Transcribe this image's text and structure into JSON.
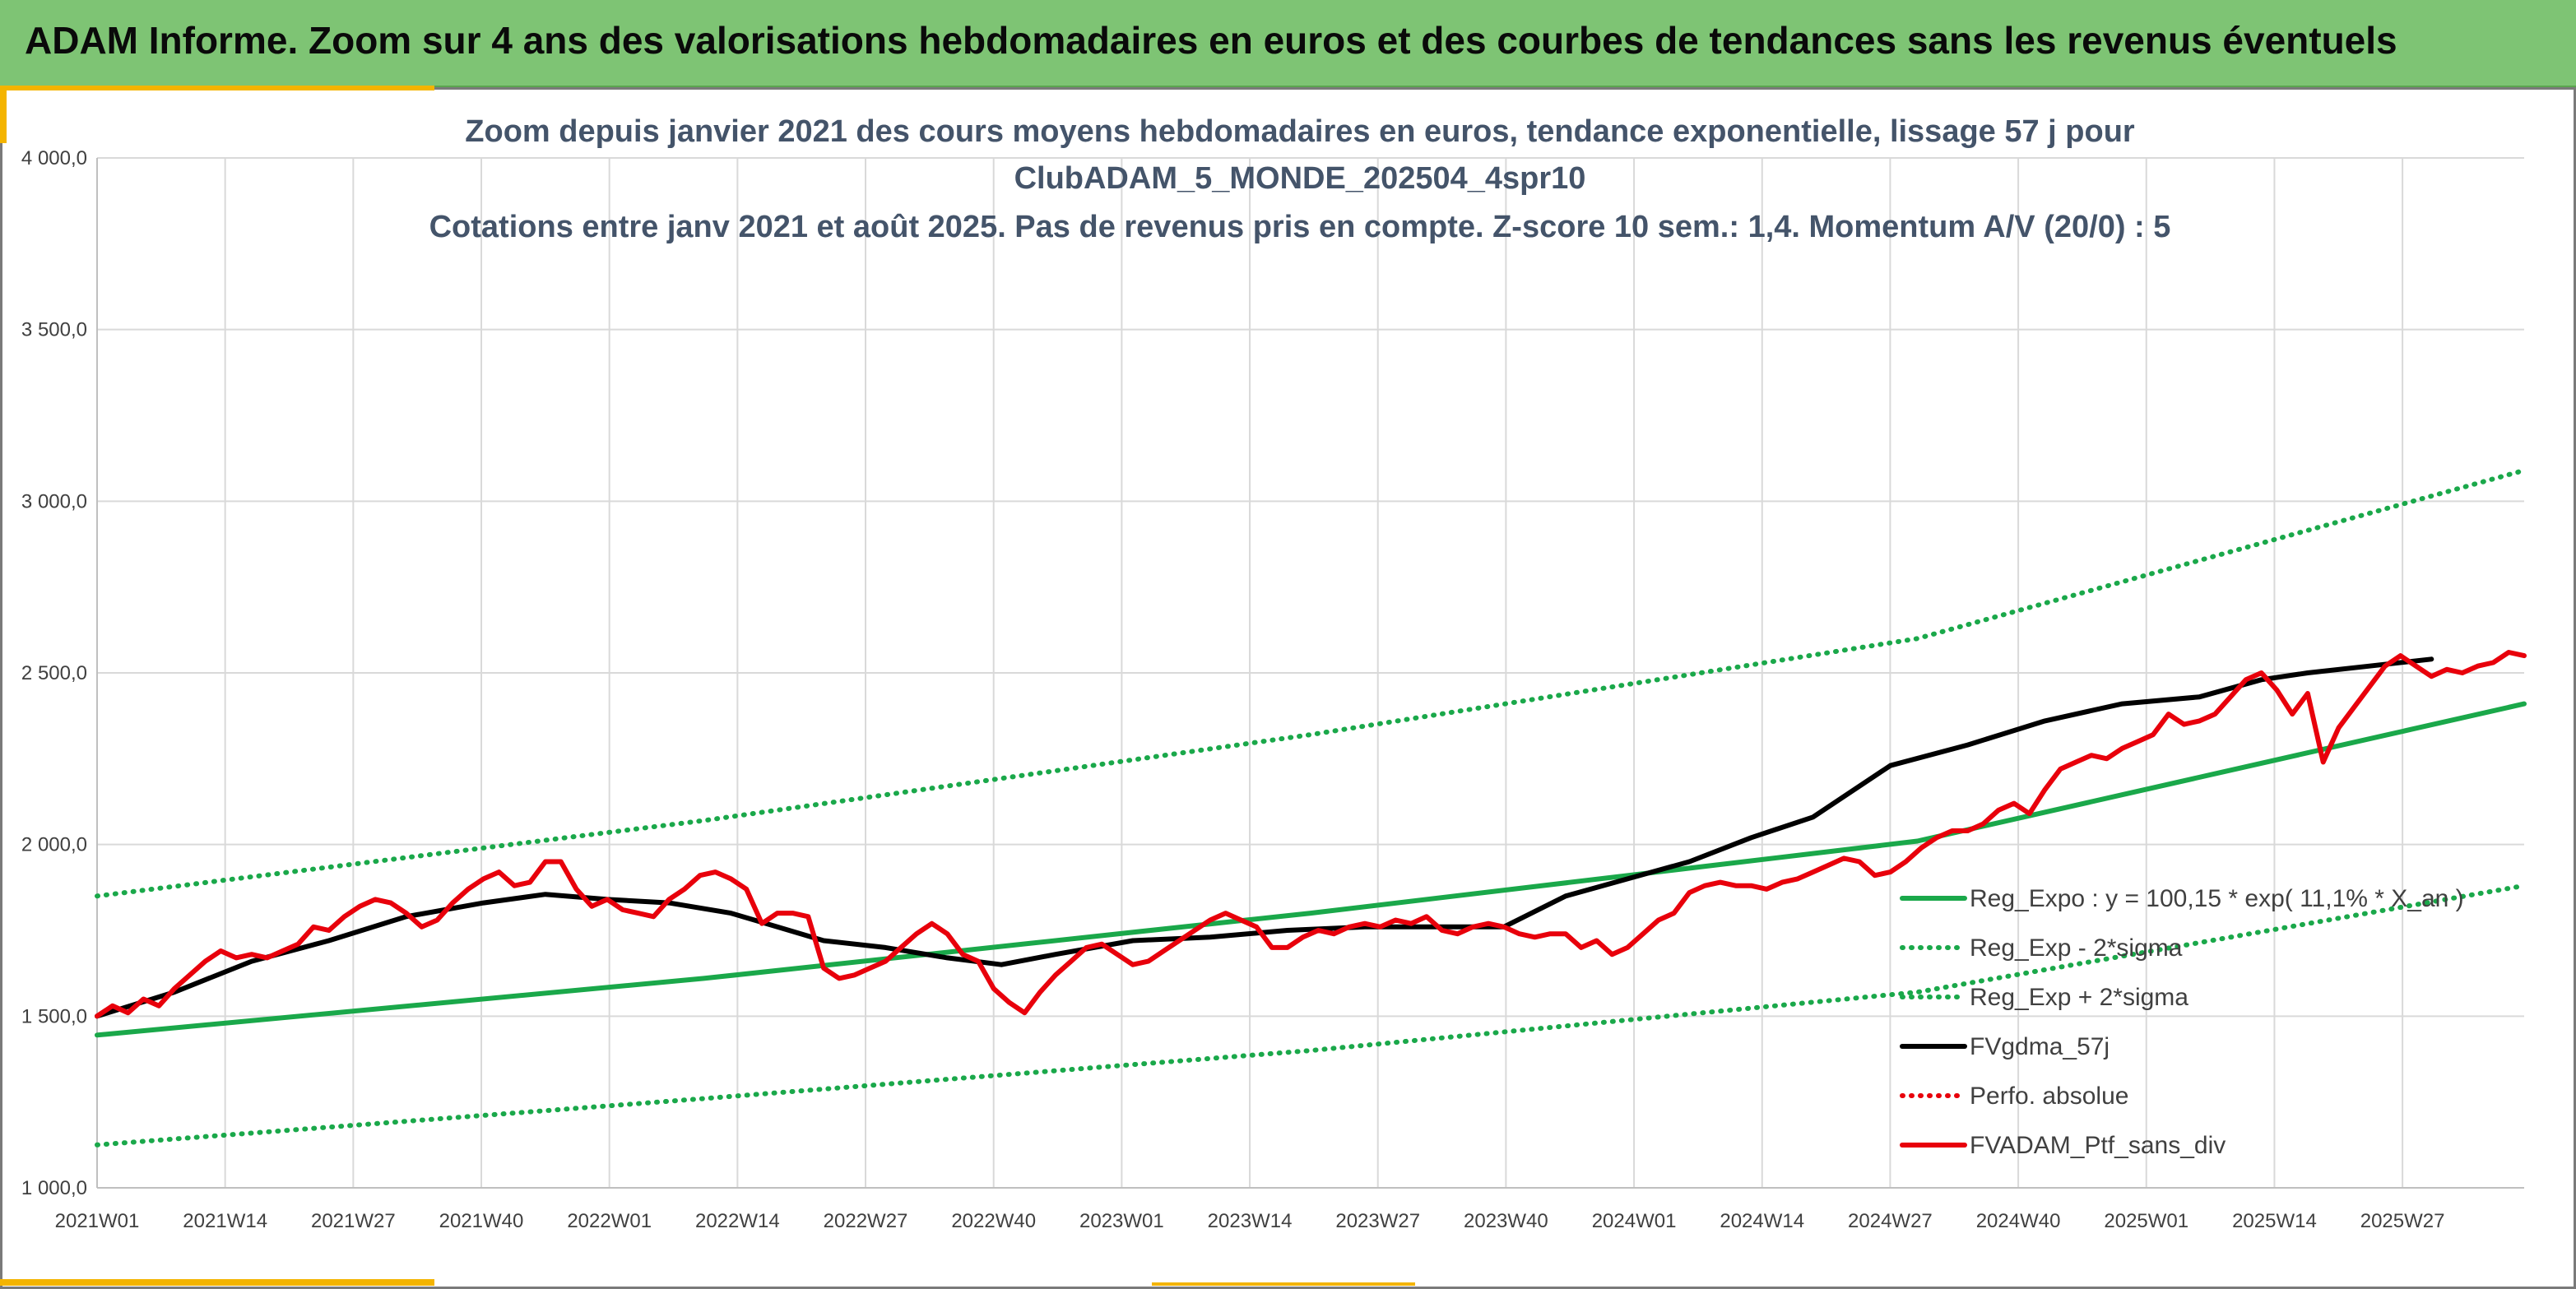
{
  "header": {
    "banner_title": "ADAM Informe. Zoom sur 4 ans des valorisations hebdomadaires en euros et des courbes de tendances sans les revenus éventuels"
  },
  "colors": {
    "banner": "#7ec474",
    "regression": "#1aa84a",
    "smoothing": "#000000",
    "portfolio": "#e8000b",
    "accent": "#f4b400"
  },
  "chart_data": {
    "type": "line",
    "title_lines": [
      "Zoom depuis janvier 2021 des cours moyens hebdomadaires en euros, tendance exponentielle, lissage 57 j pour",
      "ClubADAM_5_MONDE_202504_4spr10",
      "Cotations entre janv 2021 et août 2025. Pas de revenus pris en compte. Z-score 10 sem.: 1,4. Momentum A/V (20/0) : 5"
    ],
    "xlabel": "",
    "ylabel": "",
    "ylim": [
      1000,
      4000
    ],
    "yticks": [
      "1 000,0",
      "1 500,0",
      "2 000,0",
      "2 500,0",
      "3 000,0",
      "3 500,0",
      "4 000,0"
    ],
    "x_tick_labels": [
      "2021W01",
      "2021W14",
      "2021W27",
      "2021W40",
      "2022W01",
      "2022W14",
      "2022W27",
      "2022W40",
      "2023W01",
      "2023W14",
      "2023W27",
      "2023W40",
      "2024W01",
      "2024W14",
      "2024W27",
      "2024W40",
      "2025W01",
      "2025W14",
      "2025W27"
    ],
    "x_range_weeks": [
      0,
      240
    ],
    "grid": true,
    "legend_position": "lower-right",
    "series": [
      {
        "name": "Reg_Expo : y = 100,15 * exp( 11,1% * X_an )",
        "style": "solid",
        "color": "#1aa84a",
        "points": [
          [
            0,
            1445
          ],
          [
            60,
            1610
          ],
          [
            120,
            1800
          ],
          [
            180,
            2010
          ],
          [
            240,
            2410
          ]
        ]
      },
      {
        "name": "Reg_Exp - 2*sigma",
        "style": "dotted",
        "color": "#1aa84a",
        "points": [
          [
            0,
            1125
          ],
          [
            60,
            1260
          ],
          [
            120,
            1400
          ],
          [
            180,
            1570
          ],
          [
            240,
            1880
          ]
        ]
      },
      {
        "name": "Reg_Exp + 2*sigma",
        "style": "dotted",
        "color": "#1aa84a",
        "points": [
          [
            0,
            1850
          ],
          [
            60,
            2070
          ],
          [
            120,
            2320
          ],
          [
            180,
            2600
          ],
          [
            240,
            3090
          ]
        ]
      },
      {
        "name": "FVgdma_57j",
        "style": "solid",
        "color": "#000000",
        "points": [
          [
            0,
            1500
          ],
          [
            10,
            1570
          ],
          [
            20,
            1660
          ],
          [
            30,
            1720
          ],
          [
            40,
            1790
          ],
          [
            50,
            1830
          ],
          [
            58,
            1855
          ],
          [
            66,
            1840
          ],
          [
            74,
            1830
          ],
          [
            82,
            1800
          ],
          [
            88,
            1760
          ],
          [
            94,
            1720
          ],
          [
            102,
            1700
          ],
          [
            110,
            1670
          ],
          [
            117,
            1650
          ],
          [
            124,
            1680
          ],
          [
            134,
            1720
          ],
          [
            144,
            1730
          ],
          [
            154,
            1750
          ],
          [
            164,
            1760
          ],
          [
            174,
            1760
          ],
          [
            182,
            1760
          ],
          [
            190,
            1850
          ],
          [
            198,
            1900
          ],
          [
            206,
            1950
          ],
          [
            214,
            2020
          ],
          [
            222,
            2080
          ],
          [
            232,
            2230
          ],
          [
            242,
            2290
          ],
          [
            252,
            2360
          ],
          [
            262,
            2410
          ],
          [
            272,
            2430
          ],
          [
            280,
            2480
          ],
          [
            286,
            2500
          ],
          [
            294,
            2520
          ],
          [
            302,
            2540
          ]
        ]
      },
      {
        "name": "Perfo. absolue",
        "style": "dotted",
        "color": "#e8000b",
        "points": []
      },
      {
        "name": "FVADAM_Ptf_sans_div",
        "style": "solid",
        "color": "#e8000b",
        "points": [
          [
            0,
            1500
          ],
          [
            2,
            1530
          ],
          [
            4,
            1510
          ],
          [
            6,
            1550
          ],
          [
            8,
            1530
          ],
          [
            10,
            1580
          ],
          [
            12,
            1620
          ],
          [
            14,
            1660
          ],
          [
            16,
            1690
          ],
          [
            18,
            1670
          ],
          [
            20,
            1680
          ],
          [
            22,
            1670
          ],
          [
            24,
            1690
          ],
          [
            26,
            1710
          ],
          [
            28,
            1760
          ],
          [
            30,
            1750
          ],
          [
            32,
            1790
          ],
          [
            34,
            1820
          ],
          [
            36,
            1840
          ],
          [
            38,
            1830
          ],
          [
            40,
            1800
          ],
          [
            42,
            1760
          ],
          [
            44,
            1780
          ],
          [
            46,
            1830
          ],
          [
            48,
            1870
          ],
          [
            50,
            1900
          ],
          [
            52,
            1920
          ],
          [
            54,
            1880
          ],
          [
            56,
            1890
          ],
          [
            58,
            1950
          ],
          [
            60,
            1950
          ],
          [
            62,
            1870
          ],
          [
            64,
            1820
          ],
          [
            66,
            1840
          ],
          [
            68,
            1810
          ],
          [
            70,
            1800
          ],
          [
            72,
            1790
          ],
          [
            74,
            1840
          ],
          [
            76,
            1870
          ],
          [
            78,
            1910
          ],
          [
            80,
            1920
          ],
          [
            82,
            1900
          ],
          [
            84,
            1870
          ],
          [
            86,
            1770
          ],
          [
            88,
            1800
          ],
          [
            90,
            1800
          ],
          [
            92,
            1790
          ],
          [
            94,
            1640
          ],
          [
            96,
            1610
          ],
          [
            98,
            1620
          ],
          [
            100,
            1640
          ],
          [
            102,
            1660
          ],
          [
            104,
            1700
          ],
          [
            106,
            1740
          ],
          [
            108,
            1770
          ],
          [
            110,
            1740
          ],
          [
            112,
            1680
          ],
          [
            114,
            1660
          ],
          [
            116,
            1580
          ],
          [
            118,
            1540
          ],
          [
            120,
            1510
          ],
          [
            122,
            1570
          ],
          [
            124,
            1620
          ],
          [
            126,
            1660
          ],
          [
            128,
            1700
          ],
          [
            130,
            1710
          ],
          [
            132,
            1680
          ],
          [
            134,
            1650
          ],
          [
            136,
            1660
          ],
          [
            138,
            1690
          ],
          [
            140,
            1720
          ],
          [
            142,
            1750
          ],
          [
            144,
            1780
          ],
          [
            146,
            1800
          ],
          [
            148,
            1780
          ],
          [
            150,
            1760
          ],
          [
            152,
            1700
          ],
          [
            154,
            1700
          ],
          [
            156,
            1730
          ],
          [
            158,
            1750
          ],
          [
            160,
            1740
          ],
          [
            162,
            1760
          ],
          [
            164,
            1770
          ],
          [
            166,
            1760
          ],
          [
            168,
            1780
          ],
          [
            170,
            1770
          ],
          [
            172,
            1790
          ],
          [
            174,
            1750
          ],
          [
            176,
            1740
          ],
          [
            178,
            1760
          ],
          [
            180,
            1770
          ],
          [
            182,
            1760
          ],
          [
            184,
            1740
          ],
          [
            186,
            1730
          ],
          [
            188,
            1740
          ],
          [
            190,
            1740
          ],
          [
            192,
            1700
          ],
          [
            194,
            1720
          ],
          [
            196,
            1680
          ],
          [
            198,
            1700
          ],
          [
            200,
            1740
          ],
          [
            202,
            1780
          ],
          [
            204,
            1800
          ],
          [
            206,
            1860
          ],
          [
            208,
            1880
          ],
          [
            210,
            1890
          ],
          [
            212,
            1880
          ],
          [
            214,
            1880
          ],
          [
            216,
            1870
          ],
          [
            218,
            1890
          ],
          [
            220,
            1900
          ],
          [
            222,
            1920
          ],
          [
            224,
            1940
          ],
          [
            226,
            1960
          ],
          [
            228,
            1950
          ],
          [
            230,
            1910
          ],
          [
            232,
            1920
          ],
          [
            234,
            1950
          ],
          [
            236,
            1990
          ],
          [
            238,
            2020
          ],
          [
            240,
            2040
          ],
          [
            242,
            2040
          ],
          [
            244,
            2060
          ],
          [
            246,
            2100
          ],
          [
            248,
            2120
          ],
          [
            250,
            2090
          ],
          [
            252,
            2160
          ],
          [
            254,
            2220
          ],
          [
            256,
            2240
          ],
          [
            258,
            2260
          ],
          [
            260,
            2250
          ],
          [
            262,
            2280
          ],
          [
            264,
            2300
          ],
          [
            266,
            2320
          ],
          [
            268,
            2380
          ],
          [
            270,
            2350
          ],
          [
            272,
            2360
          ],
          [
            274,
            2380
          ],
          [
            276,
            2430
          ],
          [
            278,
            2480
          ],
          [
            280,
            2500
          ],
          [
            282,
            2450
          ],
          [
            284,
            2380
          ],
          [
            286,
            2440
          ],
          [
            288,
            2240
          ],
          [
            290,
            2340
          ],
          [
            292,
            2400
          ],
          [
            294,
            2460
          ],
          [
            296,
            2520
          ],
          [
            298,
            2550
          ],
          [
            300,
            2520
          ],
          [
            302,
            2490
          ],
          [
            304,
            2510
          ],
          [
            306,
            2500
          ],
          [
            308,
            2520
          ],
          [
            310,
            2530
          ],
          [
            312,
            2560
          ],
          [
            314,
            2550
          ]
        ]
      }
    ]
  }
}
